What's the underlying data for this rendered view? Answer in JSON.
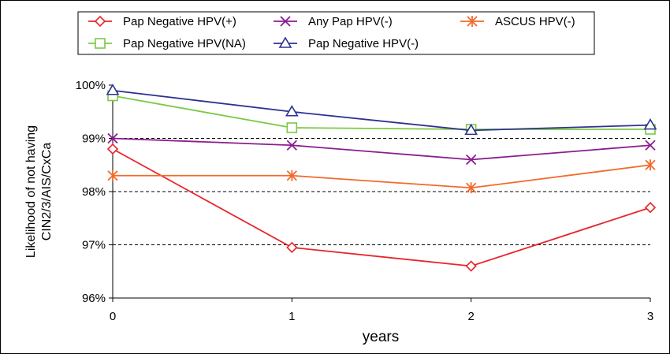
{
  "chart_data": {
    "type": "line",
    "title": "",
    "xlabel": "years",
    "ylabel_lines": [
      "Likelihood of not having",
      "CIN2/3/AIS/CxCa"
    ],
    "x": [
      0,
      1,
      2,
      3
    ],
    "x_tick_labels": [
      "0",
      "1",
      "2",
      "3"
    ],
    "xlim": [
      0,
      3
    ],
    "ylim": [
      96,
      100
    ],
    "y_ticks": [
      96,
      97,
      98,
      99,
      100
    ],
    "y_tick_labels": [
      "96%",
      "97%",
      "98%",
      "99%",
      "100%"
    ],
    "grid": "horizontal dashed",
    "legend_position": "top",
    "series": [
      {
        "name": "Pap Negative HPV(+)",
        "color": "#e8252a",
        "marker": "diamond",
        "values": [
          98.8,
          96.95,
          96.6,
          97.7
        ]
      },
      {
        "name": "Any Pap HPV(-)",
        "color": "#8b1d8e",
        "marker": "x",
        "values": [
          99.0,
          98.87,
          98.6,
          98.87
        ]
      },
      {
        "name": "ASCUS HPV(-)",
        "color": "#f26a2a",
        "marker": "asterisk",
        "values": [
          98.3,
          98.3,
          98.07,
          98.5
        ]
      },
      {
        "name": "Pap Negative HPV(NA)",
        "color": "#7ac943",
        "marker": "square",
        "values": [
          99.8,
          99.2,
          99.17,
          99.17
        ]
      },
      {
        "name": "Pap Negative HPV(-)",
        "color": "#2e3192",
        "marker": "triangle",
        "values": [
          99.9,
          99.5,
          99.15,
          99.25
        ]
      }
    ]
  }
}
